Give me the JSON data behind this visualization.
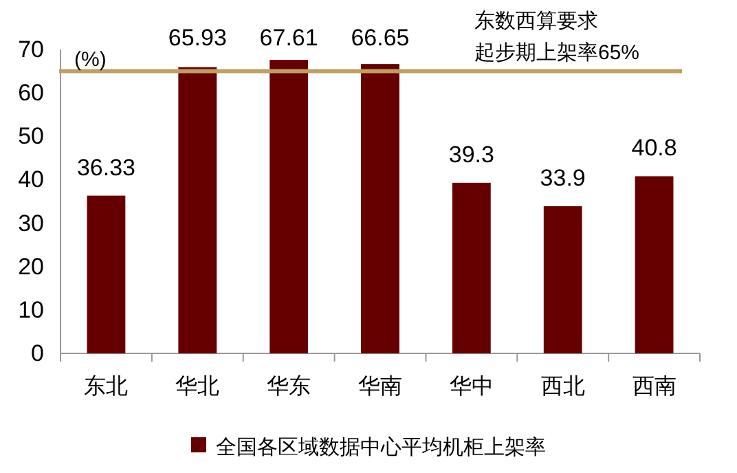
{
  "chart_data": {
    "type": "bar",
    "ylabel": "(%)",
    "categories": [
      "东北",
      "华北",
      "华东",
      "华南",
      "华中",
      "西北",
      "西南"
    ],
    "series": [
      {
        "name": "全国各区域数据中心平均机柜上架率",
        "color": "#660000",
        "values": [
          36.33,
          65.93,
          67.61,
          66.65,
          39.3,
          33.9,
          40.8
        ]
      }
    ],
    "value_labels": [
      "36.33",
      "65.93",
      "67.61",
      "66.65",
      "39.3",
      "33.9",
      "40.8"
    ],
    "ylim": [
      0,
      70
    ],
    "yticks": [
      0,
      10,
      20,
      30,
      40,
      50,
      60,
      70
    ],
    "ref_lines": [
      {
        "axis": "y",
        "value": 65,
        "label": "东数西算要求起步期上架率65%",
        "color": "#c0a060",
        "line_style": "solid"
      }
    ],
    "grid": false,
    "legend": "bottom"
  }
}
